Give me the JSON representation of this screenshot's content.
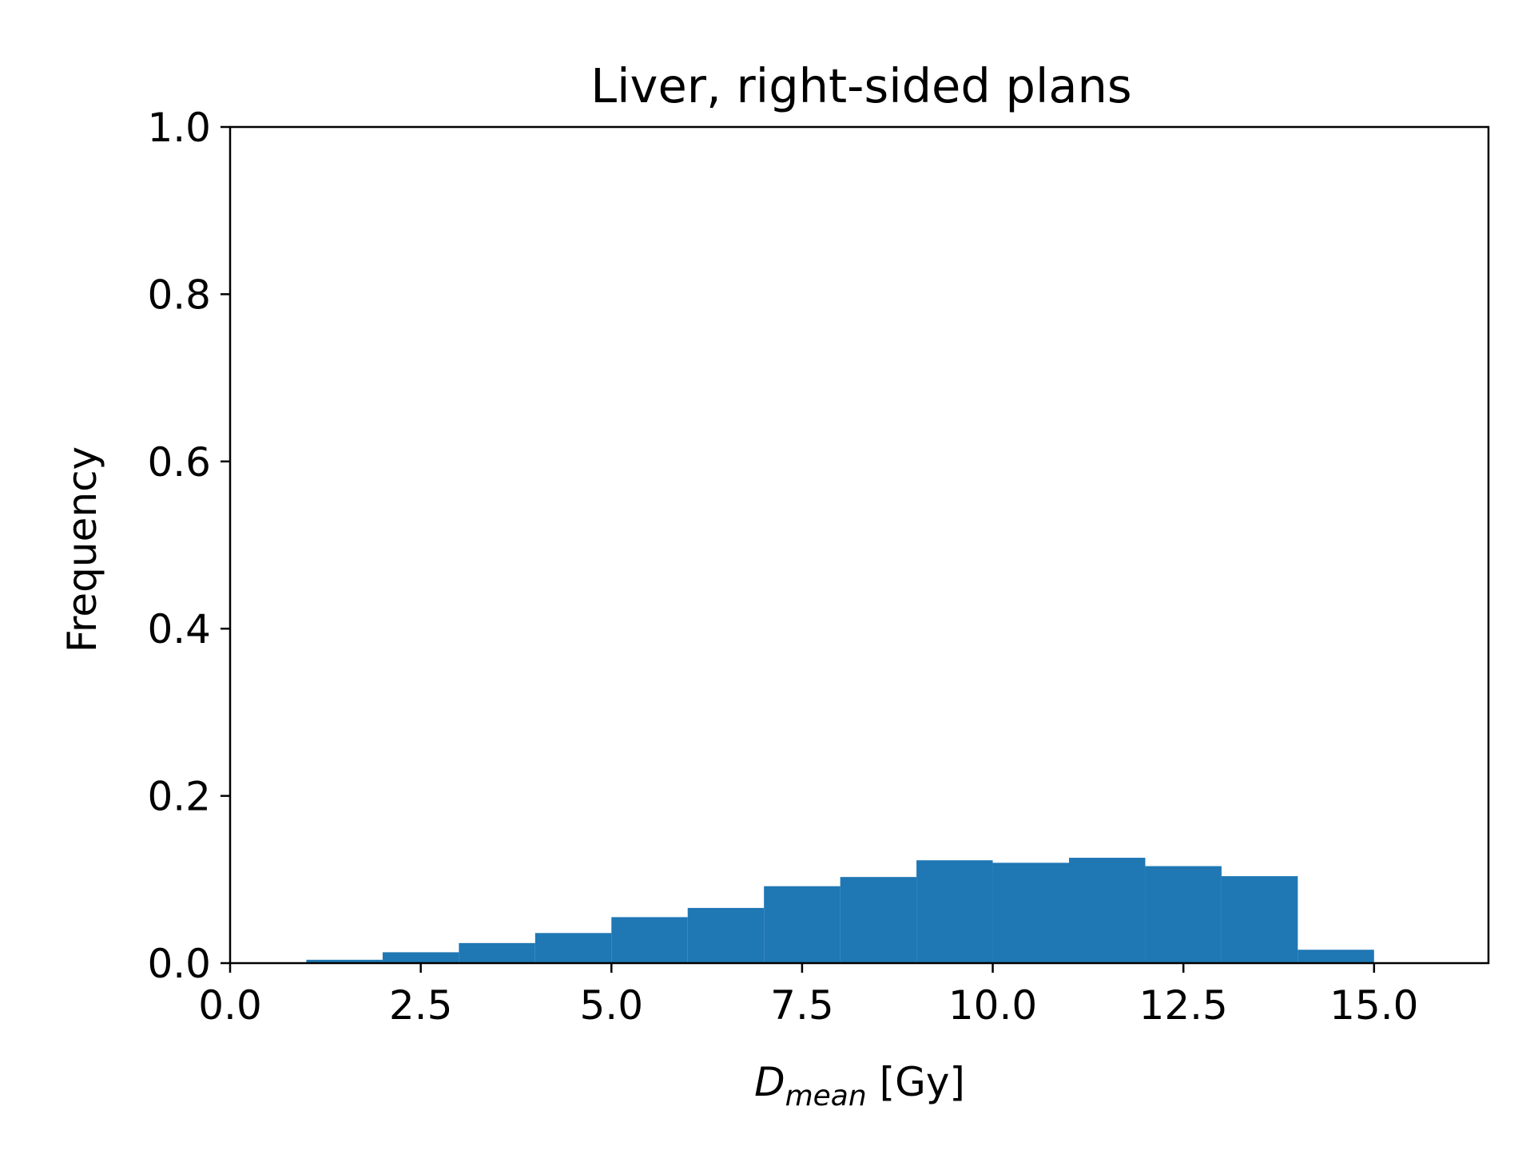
{
  "chart_data": {
    "type": "bar",
    "title": "Liver, right-sided plans",
    "xlabel": {
      "main": "D",
      "subscript": "mean",
      "unit": " [Gy]"
    },
    "ylabel": "Frequency",
    "xlim": [
      0,
      16.5
    ],
    "ylim": [
      0,
      1.0
    ],
    "xticks": [
      "0.0",
      "2.5",
      "5.0",
      "7.5",
      "10.0",
      "12.5",
      "15.0"
    ],
    "yticks": [
      "0.0",
      "0.2",
      "0.4",
      "0.6",
      "0.8",
      "1.0"
    ],
    "bin_edges": [
      0,
      1,
      2,
      3,
      4,
      5,
      6,
      7,
      8,
      9,
      10,
      11,
      12,
      13,
      14,
      15,
      16
    ],
    "values": [
      0.0,
      0.004,
      0.013,
      0.024,
      0.036,
      0.055,
      0.066,
      0.092,
      0.103,
      0.123,
      0.12,
      0.126,
      0.116,
      0.104,
      0.016,
      0.0
    ],
    "bar_color": "#1f77b4",
    "grid": false,
    "legend": false
  }
}
